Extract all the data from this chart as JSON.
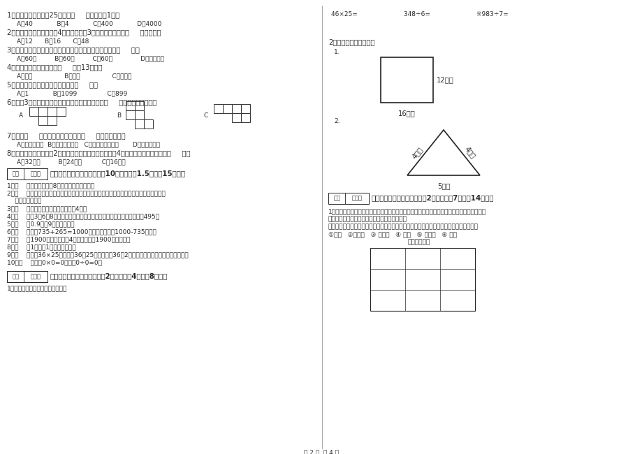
{
  "bg_color": "#ffffff",
  "text_color": "#2a2a2a",
  "line_color": "#222222",
  "page_footer": "第 2 页  共 4 页",
  "left_col": {
    "q1": "1、平均每个同学体重25千克，（     ）名同学重1吨。",
    "q1_opts": "A、40            B、4            C、400            D、4000",
    "q2": "2、一个长方形花坛的宽是4米，长是宽的3倍，花坛的面积是（     ）平方米。",
    "q2_opts": "A、12      B、16      C、48",
    "q3": "3、时针从上一个数字到相邻的下一个数字，经过的时间是（     ）。",
    "q3_opts": "A、60秒         B、60分         C、60时              D、无法确定",
    "q4": "4、按农历计算，有的年份（     ）有13个月。",
    "q4_opts": "A、一定                B、可能                C、不可能",
    "q5": "5、最小三位数和最大三位数的和是（     ）。",
    "q5_opts": "A、1            B、1099               C、899",
    "q6": "6、下列3个图形中，每个小正方形都一样大，那么（     ）图形的周长最长。",
    "q7": "7、明天（     ）会下雨，今天下午我（     ）游遍全世界。",
    "q7_opts": "A、一定，可能  B、可能，不可能   C、不可能，不可能       D、可能，可能",
    "q8": "8、一个正方形的边长是2厘米，现在将边长扩大到原来的4倍，现在正方形的周长是（     ）。",
    "q8_opts": "A、32厘米         B、24厘米          C、16厘米",
    "section3_title": "三、仔细推敲，正确判断（共10小题，每题1.5分，共15分）。",
    "judge_items": [
      "1、（    ）一个两位数乘8，积一定也是两为数。",
      "2、（    ）用同一条铁丝先围成一个最大的正方形，再围成一个最大的长方形，长方形和正方",
      "    形的周长相等。",
      "3、（    ）正方形的周长是它的边长的4倍。",
      "4、（    ）用3、6、8这三个数字组成的最大三位数与最小三位数，它们相差495。",
      "5、（    ）0.9里有9个十分之一。",
      "6、（    ）根据735+265=1000，可以直接写出1000-735的差。",
      "7、（    ）1900年的年份数是4的倍数，所以1900年是闰年。",
      "8、（    ）1吨铁与1吨棉花一样重。",
      "9、（    ）计算36×25时，先把36和25相乘，再把36和2相乘，最后把两次乘得的结果相加。",
      "10、（    ）因为0×0=0，所以0÷0=0。"
    ],
    "section4_title": "四、看清题目，细心计算（共2小题，每题4分，共8分）。",
    "section4_q1": "1、列竖式计算。（带米的要验算）"
  },
  "right_col": {
    "calc_line": "46×25=                       348÷6=                       ※983÷7=",
    "section1_label": "1.",
    "section_perimeter_title": "2、求下面图形的周长。",
    "fig1_label": "1.",
    "fig1_right": "12厘米",
    "fig1_bottom": "16厘米",
    "fig2_label": "2.",
    "fig2_left": "4分米",
    "fig2_right": "4分米",
    "fig2_bottom": "5分米",
    "section5_title": "五、认真思考，综合能力（共2小题，每题7分，共14分）。",
    "s5_t1": "1、走进动物园大门，正北面是狮子山和熊猫馆，狮子山的东侧是飞禽馆，西侧是猴园，大象馆",
    "s5_t2": "和鱼馆的地址分别在动物园的东北角和西北角。",
    "s5_t3": "根据小强的描述，请你把这些动物场馆所在的位置，在动物园的导游图上用序号表示出来。",
    "s5_t4": "①狮山   ②熊猫馆   ③ 飞禽馆   ④ 猴园   ⑤ 大象馆   ⑥ 鱼馆",
    "s5_t5": "动物园导游图"
  }
}
